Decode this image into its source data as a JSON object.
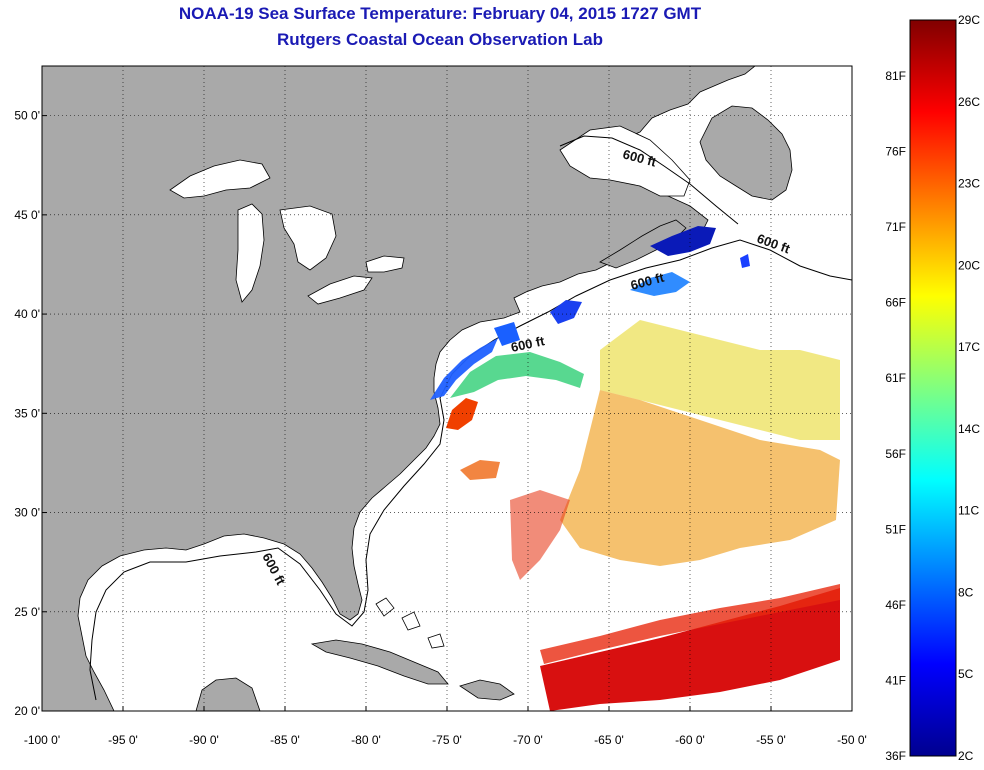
{
  "title": "NOAA-19 Sea Surface Temperature:  February 04, 2015 1727 GMT",
  "subtitle": "Rutgers Coastal Ocean Observation Lab",
  "map": {
    "lon_range": [
      -100,
      -50
    ],
    "lat_range": [
      20,
      52.5
    ],
    "lon_ticks": [
      "-100 0'",
      "-95 0'",
      "-90 0'",
      "-85 0'",
      "-80 0'",
      "-75 0'",
      "-70 0'",
      "-65 0'",
      "-60 0'",
      "-55 0'",
      "-50 0'"
    ],
    "lat_ticks": [
      "20 0'",
      "25 0'",
      "30 0'",
      "35 0'",
      "40 0'",
      "45 0'",
      "50 0'"
    ],
    "gridlines": "dotted",
    "land_color": "#a9a9a9",
    "ocean_color": "#ffffff",
    "contour_label": "600 ft"
  },
  "colorbar": {
    "fahrenheit": [
      "81F",
      "76F",
      "71F",
      "66F",
      "61F",
      "56F",
      "51F",
      "46F",
      "41F",
      "36F"
    ],
    "celsius": [
      "29C",
      "26C",
      "23C",
      "20C",
      "17C",
      "14C",
      "11C",
      "8C",
      "5C",
      "2C"
    ],
    "colors": [
      "#00008f",
      "#0000ff",
      "#0080ff",
      "#00ffff",
      "#80ff80",
      "#ffff00",
      "#ff8000",
      "#ff0000",
      "#800000"
    ]
  }
}
